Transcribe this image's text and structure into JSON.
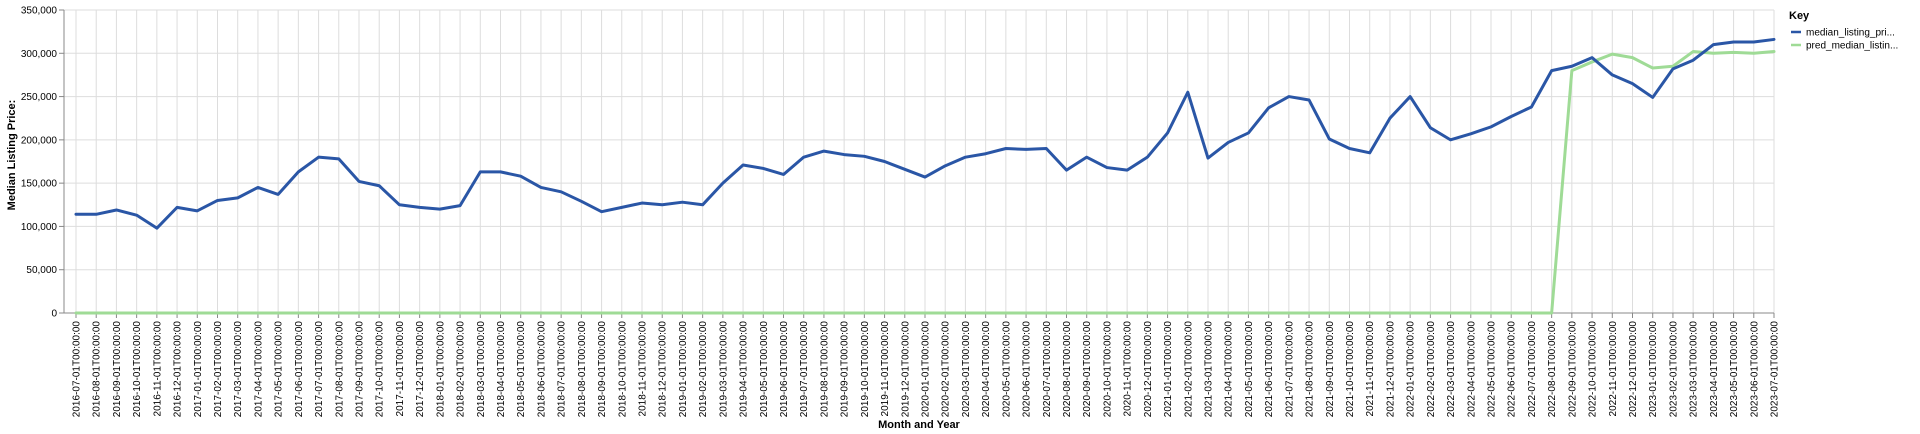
{
  "chart_data": {
    "type": "line",
    "xlabel": "Month and Year",
    "ylabel": "Median Listing Price:",
    "ylim": [
      0,
      350000
    ],
    "y_ticks": [
      "0",
      "50,000",
      "100,000",
      "150,000",
      "200,000",
      "250,000",
      "300,000",
      "350,000"
    ],
    "grid": true,
    "legend": {
      "title": "Key",
      "placement": "top-right"
    },
    "x": [
      "2016-07-01T00:00:00",
      "2016-08-01T00:00:00",
      "2016-09-01T00:00:00",
      "2016-10-01T00:00:00",
      "2016-11-01T00:00:00",
      "2016-12-01T00:00:00",
      "2017-01-01T00:00:00",
      "2017-02-01T00:00:00",
      "2017-03-01T00:00:00",
      "2017-04-01T00:00:00",
      "2017-05-01T00:00:00",
      "2017-06-01T00:00:00",
      "2017-07-01T00:00:00",
      "2017-08-01T00:00:00",
      "2017-09-01T00:00:00",
      "2017-10-01T00:00:00",
      "2017-11-01T00:00:00",
      "2017-12-01T00:00:00",
      "2018-01-01T00:00:00",
      "2018-02-01T00:00:00",
      "2018-03-01T00:00:00",
      "2018-04-01T00:00:00",
      "2018-05-01T00:00:00",
      "2018-06-01T00:00:00",
      "2018-07-01T00:00:00",
      "2018-08-01T00:00:00",
      "2018-09-01T00:00:00",
      "2018-10-01T00:00:00",
      "2018-11-01T00:00:00",
      "2018-12-01T00:00:00",
      "2019-01-01T00:00:00",
      "2019-02-01T00:00:00",
      "2019-03-01T00:00:00",
      "2019-04-01T00:00:00",
      "2019-05-01T00:00:00",
      "2019-06-01T00:00:00",
      "2019-07-01T00:00:00",
      "2019-08-01T00:00:00",
      "2019-09-01T00:00:00",
      "2019-10-01T00:00:00",
      "2019-11-01T00:00:00",
      "2019-12-01T00:00:00",
      "2020-01-01T00:00:00",
      "2020-02-01T00:00:00",
      "2020-03-01T00:00:00",
      "2020-04-01T00:00:00",
      "2020-05-01T00:00:00",
      "2020-06-01T00:00:00",
      "2020-07-01T00:00:00",
      "2020-08-01T00:00:00",
      "2020-09-01T00:00:00",
      "2020-10-01T00:00:00",
      "2020-11-01T00:00:00",
      "2020-12-01T00:00:00",
      "2021-01-01T00:00:00",
      "2021-02-01T00:00:00",
      "2021-03-01T00:00:00",
      "2021-04-01T00:00:00",
      "2021-05-01T00:00:00",
      "2021-06-01T00:00:00",
      "2021-07-01T00:00:00",
      "2021-08-01T00:00:00",
      "2021-09-01T00:00:00",
      "2021-10-01T00:00:00",
      "2021-11-01T00:00:00",
      "2021-12-01T00:00:00",
      "2022-01-01T00:00:00",
      "2022-02-01T00:00:00",
      "2022-03-01T00:00:00",
      "2022-04-01T00:00:00",
      "2022-05-01T00:00:00",
      "2022-06-01T00:00:00",
      "2022-07-01T00:00:00",
      "2022-08-01T00:00:00",
      "2022-09-01T00:00:00",
      "2022-10-01T00:00:00",
      "2022-11-01T00:00:00",
      "2022-12-01T00:00:00",
      "2023-01-01T00:00:00",
      "2023-02-01T00:00:00",
      "2023-03-01T00:00:00",
      "2023-04-01T00:00:00",
      "2023-05-01T00:00:00",
      "2023-06-01T00:00:00",
      "2023-07-01T00:00:00"
    ],
    "series": [
      {
        "name": "median_listing_pri...",
        "color": "#2a56a6",
        "values": [
          114000,
          114000,
          119000,
          113000,
          98000,
          122000,
          118000,
          130000,
          133000,
          145000,
          137000,
          163000,
          180000,
          178000,
          152000,
          147000,
          125000,
          122000,
          120000,
          124000,
          163000,
          163000,
          158000,
          145000,
          140000,
          129000,
          117000,
          122000,
          127000,
          125000,
          128000,
          125000,
          150000,
          171000,
          167000,
          160000,
          180000,
          187000,
          183000,
          181000,
          175000,
          166000,
          157000,
          170000,
          180000,
          184000,
          190000,
          189000,
          190000,
          165000,
          180000,
          168000,
          165000,
          180000,
          208000,
          255000,
          179000,
          197000,
          208000,
          237000,
          250000,
          246000,
          201000,
          190000,
          185000,
          225000,
          250000,
          214000,
          200000,
          207000,
          215000,
          227000,
          238000,
          280000,
          285000,
          295000,
          275000,
          265000,
          249000,
          282000,
          292000,
          310000,
          313000,
          313000,
          316000
        ]
      },
      {
        "name": "pred_median_listin...",
        "color": "#9fdb96",
        "values": [
          0,
          0,
          0,
          0,
          0,
          0,
          0,
          0,
          0,
          0,
          0,
          0,
          0,
          0,
          0,
          0,
          0,
          0,
          0,
          0,
          0,
          0,
          0,
          0,
          0,
          0,
          0,
          0,
          0,
          0,
          0,
          0,
          0,
          0,
          0,
          0,
          0,
          0,
          0,
          0,
          0,
          0,
          0,
          0,
          0,
          0,
          0,
          0,
          0,
          0,
          0,
          0,
          0,
          0,
          0,
          0,
          0,
          0,
          0,
          0,
          0,
          0,
          0,
          0,
          0,
          0,
          0,
          0,
          0,
          0,
          0,
          0,
          0,
          0,
          280000,
          290000,
          299000,
          295000,
          283000,
          285000,
          302000,
          300000,
          301000,
          300000,
          302000
        ]
      }
    ]
  }
}
